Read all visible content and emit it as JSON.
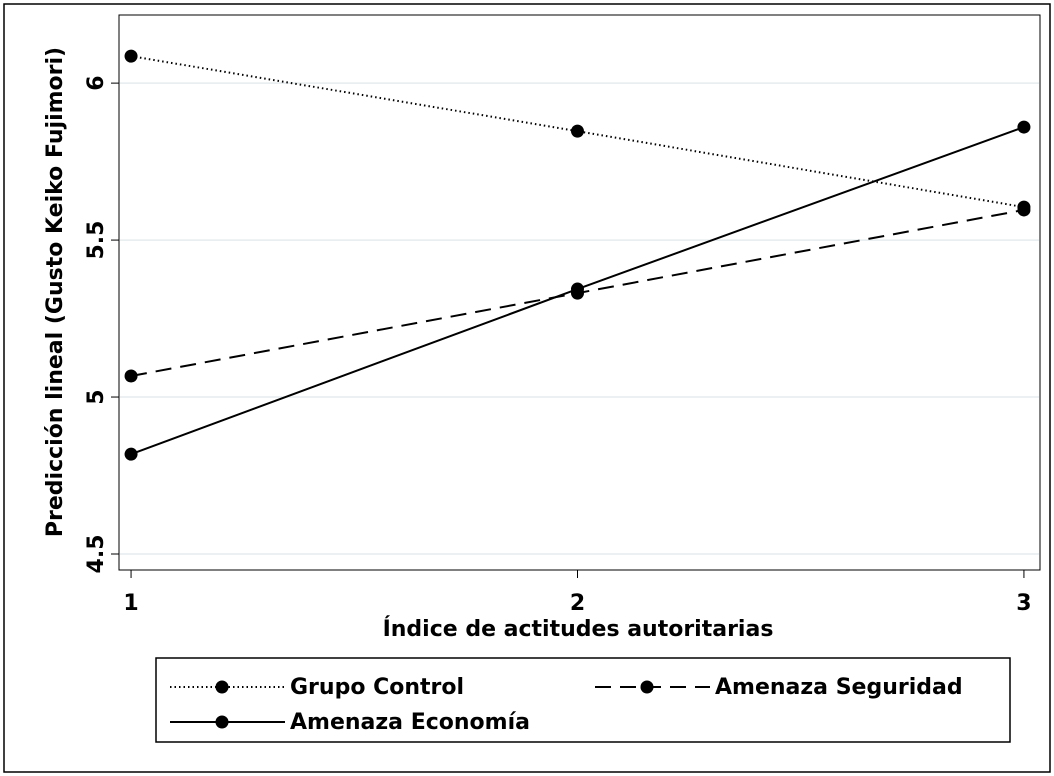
{
  "chart_data": {
    "type": "line",
    "y_label": "Predicción lineal (Gusto Keiko Fujimori)",
    "x_label": "Índice de actitudes autoritarias",
    "x": [
      1,
      2,
      3
    ],
    "series": [
      {
        "name": "Grupo Control",
        "color": "#000000",
        "dash": "dotted",
        "values": [
          6.086,
          5.847,
          5.605
        ]
      },
      {
        "name": "Amenaza Seguridad",
        "color": "#000000",
        "dash": "dashed",
        "values": [
          5.067,
          5.331,
          5.596
        ]
      },
      {
        "name": "Amenaza Economía",
        "color": "#000000",
        "dash": "solid",
        "values": [
          4.818,
          5.344,
          5.86
        ]
      }
    ],
    "xlim": [
      0.973,
      3.036
    ],
    "xticks": [
      1,
      2,
      3
    ],
    "ylim": [
      4.449,
      6.217
    ],
    "yticks": [
      4.5,
      5,
      5.5,
      6
    ],
    "grid": true
  }
}
